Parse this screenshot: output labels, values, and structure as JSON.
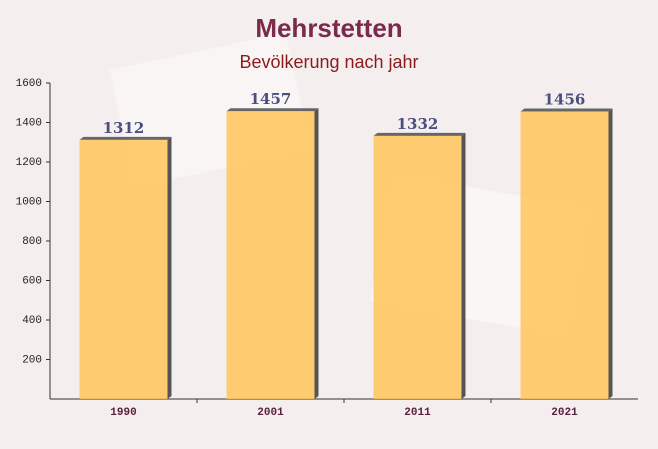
{
  "chart_data": {
    "type": "bar",
    "title": "Mehrstetten",
    "subtitle": "Bevölkerung nach jahr",
    "categories": [
      "1990",
      "2001",
      "2011",
      "2021"
    ],
    "values": [
      1312,
      1457,
      1332,
      1456
    ],
    "color": "#ffc45a",
    "ylim": [
      0,
      1600
    ],
    "yticks": [
      200,
      400,
      600,
      800,
      1000,
      1200,
      1400,
      1600
    ],
    "grid": false
  }
}
